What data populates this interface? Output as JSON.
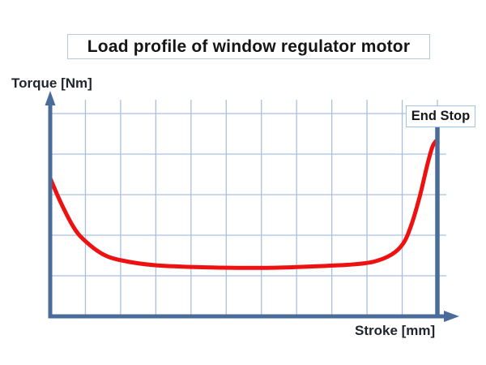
{
  "title": "Load profile of window regulator motor",
  "y_axis_label": "Torque [Nm]",
  "x_axis_label": "Stroke [mm]",
  "end_stop_label": "End Stop",
  "colors": {
    "axis": "#4a6c9b",
    "grid": "#a9c0dd",
    "curve": "#ee1111",
    "text": "#1c1c24",
    "title_box_border": "#b6c8de",
    "end_stop_box_border": "#9dc3e6",
    "background": "#ffffff"
  },
  "chart_data": {
    "type": "line",
    "title": "Load profile of window regulator motor",
    "xlabel": "Stroke [mm]",
    "ylabel": "Torque [Nm]",
    "x_tick_labels": [],
    "y_tick_labels": [],
    "value_scale": "normalized 0-1 (chart shows no numeric tick labels)",
    "grid": "on",
    "legend": "none",
    "annotations": [
      {
        "label": "End Stop",
        "x": 1.0
      }
    ],
    "layout_hints": {
      "vertical_gridlines": 11,
      "horizontal_gridlines": 5,
      "end_stop_line_at_x": 1.0,
      "x_range": [
        0,
        1
      ],
      "y_range": [
        0,
        1
      ]
    },
    "series": [
      {
        "name": "window-regulator-motor-load",
        "color": "#ee1111",
        "points": [
          [
            0.0,
            0.64
          ],
          [
            0.027,
            0.53
          ],
          [
            0.059,
            0.42
          ],
          [
            0.086,
            0.36
          ],
          [
            0.134,
            0.294
          ],
          [
            0.184,
            0.264
          ],
          [
            0.268,
            0.242
          ],
          [
            0.362,
            0.234
          ],
          [
            0.467,
            0.23
          ],
          [
            0.571,
            0.23
          ],
          [
            0.676,
            0.236
          ],
          [
            0.77,
            0.244
          ],
          [
            0.833,
            0.257
          ],
          [
            0.881,
            0.29
          ],
          [
            0.912,
            0.342
          ],
          [
            0.933,
            0.428
          ],
          [
            0.954,
            0.554
          ],
          [
            0.973,
            0.695
          ],
          [
            0.987,
            0.784
          ],
          [
            0.998,
            0.814
          ]
        ]
      }
    ]
  }
}
